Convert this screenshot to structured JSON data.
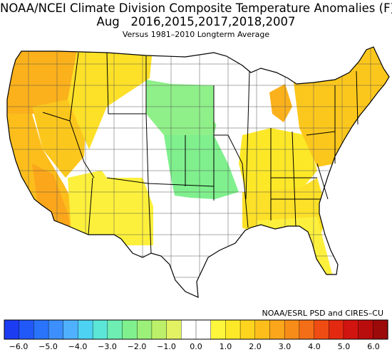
{
  "header": {
    "title": "NOAA/NCEI Climate Division Composite Temperature Anomalies (F)",
    "subtitle": "Aug   2016,2015,2017,2018,2007",
    "baseline": "Versus 1981–2010 Longterm Average"
  },
  "credit": "NOAA/ESRL PSD and CIRES–CU",
  "colorbar": {
    "tick_labels": [
      "−6.0",
      "−5.0",
      "−4.0",
      "−3.0",
      "−2.0",
      "−1.0",
      "0.0",
      "1.0",
      "2.0",
      "3.0",
      "4.0",
      "5.0",
      "6.0"
    ],
    "colors": [
      "#1c3cf2",
      "#2158f8",
      "#2a74fb",
      "#3c8ffd",
      "#4fb1fd",
      "#4ed2f4",
      "#5ce6d7",
      "#6eeeb2",
      "#7ff08d",
      "#9cef79",
      "#bdf06a",
      "#e2f263",
      "#ffffff",
      "#ffffff",
      "#fdf63c",
      "#fde828",
      "#ffd41e",
      "#fdbe1c",
      "#fba61b",
      "#f78c18",
      "#f36e16",
      "#ee4c12",
      "#e32a10",
      "#d11410",
      "#b90d0d",
      "#9c0a0a"
    ]
  },
  "regions": [
    {
      "name": "pacific-northwest",
      "anomaly_f": 2.5,
      "color": "#fbb11b"
    },
    {
      "name": "california",
      "anomaly_f": 2.2,
      "color": "#fdbe1c"
    },
    {
      "name": "southern-california-desert",
      "anomaly_f": 2.8,
      "color": "#fba61b"
    },
    {
      "name": "great-basin",
      "anomaly_f": 2.0,
      "color": "#fcc71d"
    },
    {
      "name": "northern-rockies",
      "anomaly_f": 1.5,
      "color": "#fde028"
    },
    {
      "name": "southwest",
      "anomaly_f": 1.0,
      "color": "#fdf03c"
    },
    {
      "name": "central-rockies",
      "anomaly_f": 0.0,
      "color": "#ffffff"
    },
    {
      "name": "northern-plains",
      "anomaly_f": -1.5,
      "color": "#8ff08a"
    },
    {
      "name": "central-plains",
      "anomaly_f": -1.8,
      "color": "#7ff08d"
    },
    {
      "name": "southern-plains-texas",
      "anomaly_f": 0.0,
      "color": "#ffffff"
    },
    {
      "name": "upper-midwest",
      "anomaly_f": 0.0,
      "color": "#ffffff"
    },
    {
      "name": "lower-michigan",
      "anomaly_f": 2.5,
      "color": "#fbb11b"
    },
    {
      "name": "ohio-valley",
      "anomaly_f": 1.2,
      "color": "#fde828"
    },
    {
      "name": "southeast",
      "anomaly_f": 1.5,
      "color": "#fde028"
    },
    {
      "name": "northeast",
      "anomaly_f": 2.0,
      "color": "#fcc71d"
    },
    {
      "name": "florida",
      "anomaly_f": 1.0,
      "color": "#fdf03c"
    }
  ]
}
